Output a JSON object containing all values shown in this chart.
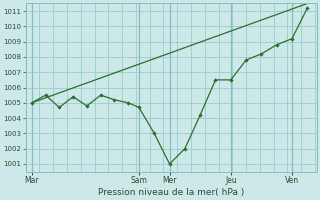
{
  "background_color": "#cce8e8",
  "grid_color": "#99cccc",
  "line_color": "#2d6e2d",
  "title": "Pression niveau de la mer( hPa )",
  "ylim": [
    1000.5,
    1011.5
  ],
  "yticks": [
    1001,
    1002,
    1003,
    1004,
    1005,
    1006,
    1007,
    1008,
    1009,
    1010,
    1011
  ],
  "day_labels": [
    "Mar",
    "Sam",
    "Mer",
    "Jeu",
    "Ven"
  ],
  "day_positions": [
    0.0,
    3.5,
    4.5,
    6.5,
    8.5
  ],
  "vline_positions": [
    0.0,
    3.5,
    4.5,
    6.5,
    8.5
  ],
  "zigzag_x": [
    0.0,
    0.45,
    0.9,
    1.35,
    1.8,
    2.25,
    2.7,
    3.15,
    3.5,
    4.0,
    4.5,
    5.0,
    5.5,
    6.0,
    6.5,
    7.0,
    7.5,
    8.0,
    8.5,
    9.0
  ],
  "zigzag_y": [
    1005.0,
    1005.5,
    1004.7,
    1005.4,
    1004.8,
    1005.5,
    1005.2,
    1005.0,
    1004.7,
    1003.0,
    1001.0,
    1002.0,
    1004.2,
    1006.5,
    1006.5,
    1007.8,
    1008.2,
    1008.8,
    1009.2,
    1011.2
  ],
  "trend_x": [
    0.0,
    9.0
  ],
  "trend_y": [
    1005.0,
    1011.5
  ],
  "xlim": [
    -0.2,
    9.3
  ]
}
